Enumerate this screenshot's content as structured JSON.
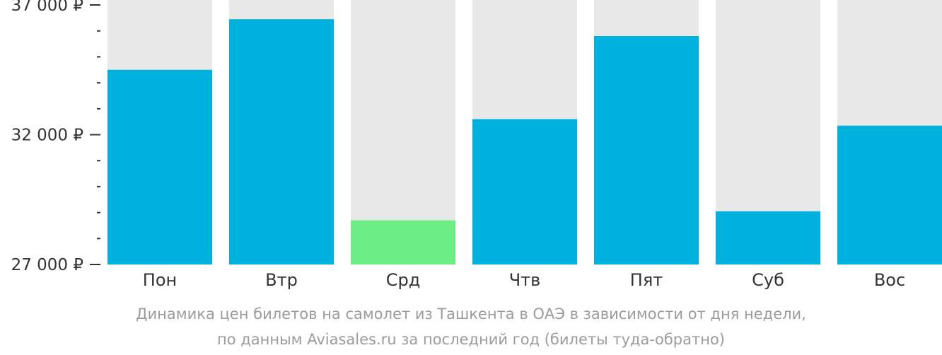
{
  "chart_data": {
    "type": "bar",
    "categories": [
      "Пон",
      "Втр",
      "Срд",
      "Чтв",
      "Пят",
      "Суб",
      "Вос"
    ],
    "values": [
      34500,
      36450,
      28700,
      32600,
      35800,
      29050,
      32350
    ],
    "ylim": [
      27000,
      37000
    ],
    "y_major_ticks": [
      {
        "value": 27000,
        "label": "27 000 ₽"
      },
      {
        "value": 32000,
        "label": "32 000 ₽"
      },
      {
        "value": 37000,
        "label": "37 000 ₽"
      }
    ],
    "y_minor_step": 1000,
    "min_category": "Срд",
    "colors": {
      "bar": "#00b0dd",
      "bar_min": "#6ced86",
      "background_column": "#e8e8e8",
      "axis": "#333333",
      "caption": "#9b9b9b"
    },
    "caption": {
      "line1": "Динамика цен билетов на самолет из Ташкента в ОАЭ в зависимости от дня недели,",
      "line2": "по данным Aviasales.ru за последний год (билеты туда-обратно)"
    }
  }
}
